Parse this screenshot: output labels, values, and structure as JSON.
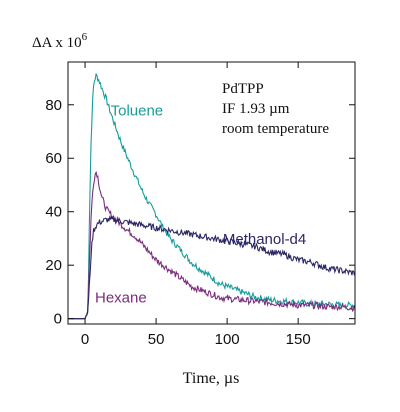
{
  "chart_data": {
    "type": "line",
    "title": "",
    "ylabel_base": "ΔA x 10",
    "ylabel_exp": "6",
    "xlabel": "Time, µs",
    "xlim": [
      -12,
      190
    ],
    "ylim": [
      -2,
      96
    ],
    "xticks": [
      0,
      50,
      100,
      150
    ],
    "yticks": [
      0,
      20,
      40,
      60,
      80
    ],
    "annotation": [
      "PdTPP",
      "IF 1.93 µm",
      "room temperature"
    ],
    "series": [
      {
        "name": "Toluene",
        "color": "#1a9b9b",
        "points": [
          [
            -12,
            0
          ],
          [
            0,
            0
          ],
          [
            2,
            3
          ],
          [
            3,
            35
          ],
          [
            4,
            62
          ],
          [
            5,
            78
          ],
          [
            6,
            87
          ],
          [
            7,
            90
          ],
          [
            8,
            91
          ],
          [
            10,
            89
          ],
          [
            12,
            86
          ],
          [
            15,
            82
          ],
          [
            18,
            77
          ],
          [
            22,
            71
          ],
          [
            26,
            65
          ],
          [
            30,
            60
          ],
          [
            35,
            54
          ],
          [
            40,
            48
          ],
          [
            45,
            43
          ],
          [
            50,
            39
          ],
          [
            55,
            34
          ],
          [
            60,
            30
          ],
          [
            65,
            27
          ],
          [
            70,
            24
          ],
          [
            75,
            21
          ],
          [
            80,
            19
          ],
          [
            85,
            17
          ],
          [
            90,
            15
          ],
          [
            95,
            13
          ],
          [
            100,
            12
          ],
          [
            110,
            10
          ],
          [
            120,
            8
          ],
          [
            130,
            7
          ],
          [
            140,
            6.5
          ],
          [
            150,
            6
          ],
          [
            160,
            5.5
          ],
          [
            170,
            5.5
          ],
          [
            180,
            5
          ],
          [
            190,
            5
          ]
        ]
      },
      {
        "name": "Hexane",
        "color": "#7b2d7b",
        "points": [
          [
            -12,
            0
          ],
          [
            0,
            0
          ],
          [
            2,
            3
          ],
          [
            3,
            20
          ],
          [
            4,
            35
          ],
          [
            5,
            45
          ],
          [
            6,
            51
          ],
          [
            7,
            54
          ],
          [
            8,
            55
          ],
          [
            9,
            53
          ],
          [
            10,
            50
          ],
          [
            12,
            45
          ],
          [
            15,
            41
          ],
          [
            18,
            39
          ],
          [
            22,
            37
          ],
          [
            26,
            35
          ],
          [
            30,
            33
          ],
          [
            35,
            31
          ],
          [
            40,
            28
          ],
          [
            45,
            25
          ],
          [
            50,
            22
          ],
          [
            55,
            20
          ],
          [
            60,
            18
          ],
          [
            65,
            16
          ],
          [
            70,
            14
          ],
          [
            75,
            12
          ],
          [
            80,
            11
          ],
          [
            85,
            10
          ],
          [
            90,
            9
          ],
          [
            95,
            8
          ],
          [
            100,
            7.5
          ],
          [
            110,
            7
          ],
          [
            120,
            6.5
          ],
          [
            130,
            6
          ],
          [
            140,
            5.5
          ],
          [
            150,
            5
          ],
          [
            160,
            5
          ],
          [
            170,
            4.5
          ],
          [
            180,
            4.5
          ],
          [
            190,
            4
          ]
        ]
      },
      {
        "name": "Methanol-d4",
        "color": "#2c2766",
        "points": [
          [
            -12,
            0
          ],
          [
            0,
            0
          ],
          [
            2,
            3
          ],
          [
            3,
            12
          ],
          [
            4,
            22
          ],
          [
            5,
            29
          ],
          [
            6,
            33
          ],
          [
            8,
            35
          ],
          [
            10,
            36
          ],
          [
            15,
            37
          ],
          [
            20,
            37
          ],
          [
            30,
            36
          ],
          [
            40,
            35
          ],
          [
            50,
            34
          ],
          [
            60,
            33
          ],
          [
            70,
            32
          ],
          [
            80,
            31
          ],
          [
            90,
            30
          ],
          [
            100,
            29
          ],
          [
            110,
            28
          ],
          [
            120,
            27
          ],
          [
            130,
            25
          ],
          [
            140,
            24
          ],
          [
            150,
            22
          ],
          [
            160,
            21
          ],
          [
            170,
            19
          ],
          [
            180,
            18
          ],
          [
            190,
            17
          ]
        ]
      }
    ],
    "series_labels": {
      "Toluene": {
        "x": 18,
        "y": 76
      },
      "Methanol-d4": {
        "x": 97,
        "y": 28
      },
      "Hexane": {
        "x": 7,
        "y": 6
      }
    }
  }
}
